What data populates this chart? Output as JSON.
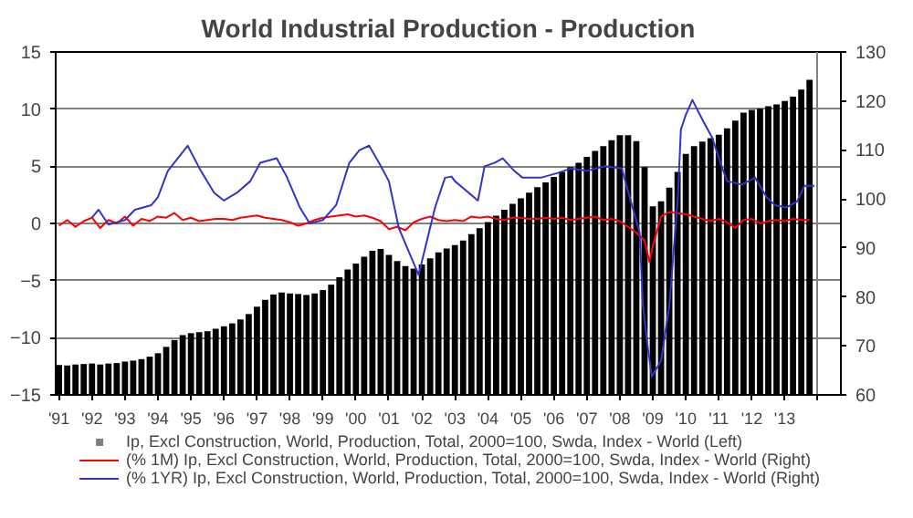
{
  "chart_data": {
    "type": "bar",
    "title": "World Industrial Production - Production",
    "xlim": [
      1990.9,
      2014.7
    ],
    "ylim": [
      -15,
      15
    ],
    "yticks": [
      -15,
      -10,
      -5,
      0,
      5,
      10,
      15
    ],
    "y2lim": [
      60,
      130
    ],
    "y2ticks": [
      60,
      70,
      80,
      90,
      100,
      110,
      120,
      130
    ],
    "xticks": [
      {
        "value": 1991,
        "label": "'91"
      },
      {
        "value": 1992,
        "label": "'92"
      },
      {
        "value": 1993,
        "label": "'93"
      },
      {
        "value": 1994,
        "label": "'94"
      },
      {
        "value": 1995,
        "label": "'95"
      },
      {
        "value": 1996,
        "label": "'96"
      },
      {
        "value": 1997,
        "label": "'97"
      },
      {
        "value": 1998,
        "label": "'98"
      },
      {
        "value": 1999,
        "label": "'99"
      },
      {
        "value": 2000,
        "label": "'00"
      },
      {
        "value": 2001,
        "label": "'01"
      },
      {
        "value": 2002,
        "label": "'02"
      },
      {
        "value": 2003,
        "label": "'03"
      },
      {
        "value": 2004,
        "label": "'04"
      },
      {
        "value": 2005,
        "label": "'05"
      },
      {
        "value": 2006,
        "label": "'06"
      },
      {
        "value": 2007,
        "label": "'07"
      },
      {
        "value": 2008,
        "label": "'08"
      },
      {
        "value": 2009,
        "label": "'09"
      },
      {
        "value": 2010,
        "label": "'10"
      },
      {
        "value": 2011,
        "label": "'11"
      },
      {
        "value": 2012,
        "label": "'12"
      },
      {
        "value": 2013,
        "label": "'13"
      },
      {
        "value": 2014,
        "label": null
      }
    ],
    "grid": true,
    "legend": "bottom",
    "series": [
      {
        "name": "Ip, Excl Construction, World, Production, Total, 2000=100, Swda, Index - World (Left)",
        "axis": "y2",
        "color": "#000000",
        "x": [
          1991.0,
          1991.25,
          1991.5,
          1991.75,
          1992.0,
          1992.25,
          1992.5,
          1992.75,
          1993.0,
          1993.25,
          1993.5,
          1993.75,
          1994.0,
          1994.25,
          1994.5,
          1994.75,
          1995.0,
          1995.25,
          1995.5,
          1995.75,
          1996.0,
          1996.25,
          1996.5,
          1996.75,
          1997.0,
          1997.25,
          1997.5,
          1997.75,
          1998.0,
          1998.25,
          1998.5,
          1998.75,
          1999.0,
          1999.25,
          1999.5,
          1999.75,
          2000.0,
          2000.25,
          2000.5,
          2000.75,
          2001.0,
          2001.25,
          2001.5,
          2001.75,
          2002.0,
          2002.25,
          2002.5,
          2002.75,
          2003.0,
          2003.25,
          2003.5,
          2003.75,
          2004.0,
          2004.25,
          2004.5,
          2004.75,
          2005.0,
          2005.25,
          2005.5,
          2005.75,
          2006.0,
          2006.25,
          2006.5,
          2006.75,
          2007.0,
          2007.25,
          2007.5,
          2007.75,
          2008.0,
          2008.25,
          2008.5,
          2008.75,
          2009.0,
          2009.25,
          2009.5,
          2009.75,
          2010.0,
          2010.25,
          2010.5,
          2010.75,
          2011.0,
          2011.25,
          2011.5,
          2011.75,
          2012.0,
          2012.25,
          2012.5,
          2012.75,
          2013.0,
          2013.25,
          2013.5,
          2013.75
        ],
        "values": [
          66.1,
          66.0,
          66.2,
          66.3,
          66.4,
          66.2,
          66.4,
          66.5,
          66.8,
          67.0,
          67.3,
          67.8,
          68.5,
          69.8,
          71.2,
          72.2,
          72.6,
          72.8,
          73.0,
          73.5,
          74.0,
          74.6,
          75.4,
          76.5,
          78.0,
          79.4,
          80.5,
          80.9,
          80.7,
          80.6,
          80.4,
          80.7,
          81.4,
          82.5,
          84.0,
          85.6,
          86.8,
          88.2,
          89.4,
          89.8,
          88.6,
          87.3,
          86.3,
          85.8,
          86.6,
          87.9,
          89.1,
          89.9,
          90.6,
          91.5,
          92.8,
          94.0,
          95.3,
          96.6,
          97.8,
          99.0,
          100.1,
          101.3,
          102.4,
          103.4,
          104.5,
          105.5,
          106.5,
          107.4,
          108.6,
          109.8,
          110.8,
          112.0,
          113.0,
          113.0,
          111.8,
          106.5,
          98.5,
          99.5,
          102.3,
          105.5,
          109.2,
          110.8,
          111.7,
          112.4,
          113.1,
          114.4,
          116.0,
          117.6,
          118.2,
          118.4,
          118.9,
          119.3,
          120.0,
          120.9,
          122.3,
          124.3
        ]
      },
      {
        "name": "(% 1M) Ip, Excl Construction, World, Production, Total, 2000=100, Swda, Index - World (Right)",
        "type": "line",
        "axis": "y",
        "color": "#ff0000",
        "x": [
          1991.0,
          1991.25,
          1991.5,
          1991.75,
          1992.0,
          1992.25,
          1992.5,
          1992.75,
          1993.0,
          1993.25,
          1993.5,
          1993.75,
          1994.0,
          1994.25,
          1994.5,
          1994.75,
          1995.0,
          1995.25,
          1995.5,
          1995.75,
          1996.0,
          1996.25,
          1996.5,
          1996.75,
          1997.0,
          1997.25,
          1997.5,
          1997.75,
          1998.0,
          1998.25,
          1998.5,
          1998.75,
          1999.0,
          1999.25,
          1999.5,
          1999.75,
          2000.0,
          2000.25,
          2000.5,
          2000.75,
          2001.0,
          2001.25,
          2001.5,
          2001.75,
          2002.0,
          2002.25,
          2002.5,
          2002.75,
          2003.0,
          2003.25,
          2003.5,
          2003.75,
          2004.0,
          2004.25,
          2004.5,
          2004.75,
          2005.0,
          2005.25,
          2005.5,
          2005.75,
          2006.0,
          2006.25,
          2006.5,
          2006.75,
          2007.0,
          2007.25,
          2007.5,
          2007.75,
          2008.0,
          2008.25,
          2008.5,
          2008.75,
          2008.9,
          2009.0,
          2009.25,
          2009.5,
          2009.75,
          2010.0,
          2010.25,
          2010.5,
          2010.75,
          2011.0,
          2011.25,
          2011.5,
          2011.75,
          2012.0,
          2012.25,
          2012.5,
          2012.75,
          2013.0,
          2013.25,
          2013.5,
          2013.75
        ],
        "values": [
          -0.2,
          0.3,
          -0.3,
          0.2,
          0.5,
          -0.4,
          0.3,
          0.0,
          0.6,
          -0.2,
          0.4,
          0.2,
          0.6,
          0.5,
          0.9,
          0.3,
          0.5,
          0.2,
          0.3,
          0.4,
          0.4,
          0.3,
          0.5,
          0.6,
          0.7,
          0.5,
          0.4,
          0.3,
          0.1,
          -0.2,
          0.0,
          0.3,
          0.5,
          0.6,
          0.7,
          0.8,
          0.6,
          0.7,
          0.5,
          0.2,
          -0.5,
          -0.3,
          -0.6,
          0.1,
          0.4,
          0.6,
          0.3,
          0.2,
          0.3,
          0.2,
          0.6,
          0.5,
          0.6,
          0.4,
          0.3,
          0.5,
          0.5,
          0.4,
          0.4,
          0.5,
          0.4,
          0.5,
          0.3,
          0.4,
          0.5,
          0.6,
          0.3,
          0.4,
          0.2,
          -0.3,
          -0.8,
          -1.5,
          -3.4,
          -2.0,
          0.6,
          1.0,
          0.9,
          0.8,
          0.6,
          0.4,
          0.2,
          0.4,
          0.1,
          -0.4,
          0.3,
          0.4,
          0.0,
          0.2,
          0.3,
          0.2,
          0.4,
          0.3,
          0.3
        ]
      },
      {
        "name": "(% 1YR) Ip, Excl Construction, World, Production, Total, 2000=100, Swda, Index - World (Right)",
        "type": "line",
        "axis": "y",
        "color": "#3333cc",
        "x": [
          1992.0,
          1992.2,
          1992.5,
          1993.0,
          1993.3,
          1993.8,
          1994.0,
          1994.3,
          1994.6,
          1994.9,
          1995.3,
          1995.7,
          1996.0,
          1996.4,
          1996.8,
          1997.1,
          1997.6,
          1997.9,
          1998.3,
          1998.6,
          1999.0,
          1999.4,
          1999.8,
          2000.1,
          2000.4,
          2000.7,
          2001.0,
          2001.3,
          2001.9,
          2002.4,
          2002.7,
          2002.9,
          2003.0,
          2003.7,
          2003.9,
          2004.2,
          2004.45,
          2004.8,
          2005.05,
          2005.6,
          2006.1,
          2006.5,
          2007.0,
          2007.55,
          2008.06,
          2008.3,
          2008.6,
          2008.7,
          2008.85,
          2008.97,
          2009.25,
          2009.5,
          2009.76,
          2009.85,
          2010.0,
          2010.2,
          2010.5,
          2010.8,
          2011.05,
          2011.25,
          2011.7,
          2012.1,
          2012.45,
          2012.7,
          2013.05,
          2013.37,
          2013.6,
          2013.9
        ],
        "values": [
          0.5,
          1.2,
          -0.1,
          0.3,
          1.2,
          1.6,
          2.3,
          4.6,
          5.7,
          6.8,
          4.6,
          2.7,
          2.0,
          2.7,
          3.7,
          5.3,
          5.7,
          4.1,
          1.4,
          0.0,
          0.3,
          1.6,
          5.3,
          6.4,
          6.8,
          5.3,
          3.7,
          -0.4,
          -4.5,
          1.4,
          4.0,
          4.1,
          3.7,
          2.0,
          5.0,
          5.3,
          5.7,
          4.6,
          4.0,
          4.0,
          4.4,
          4.8,
          4.6,
          5.0,
          4.8,
          2.3,
          -0.8,
          -7.2,
          -10.9,
          -13.4,
          -12.0,
          -7.2,
          2.3,
          8.2,
          9.5,
          10.8,
          9.1,
          7.5,
          5.3,
          3.7,
          3.4,
          4.0,
          2.3,
          1.6,
          1.4,
          1.9,
          3.3,
          3.3
        ]
      }
    ]
  }
}
